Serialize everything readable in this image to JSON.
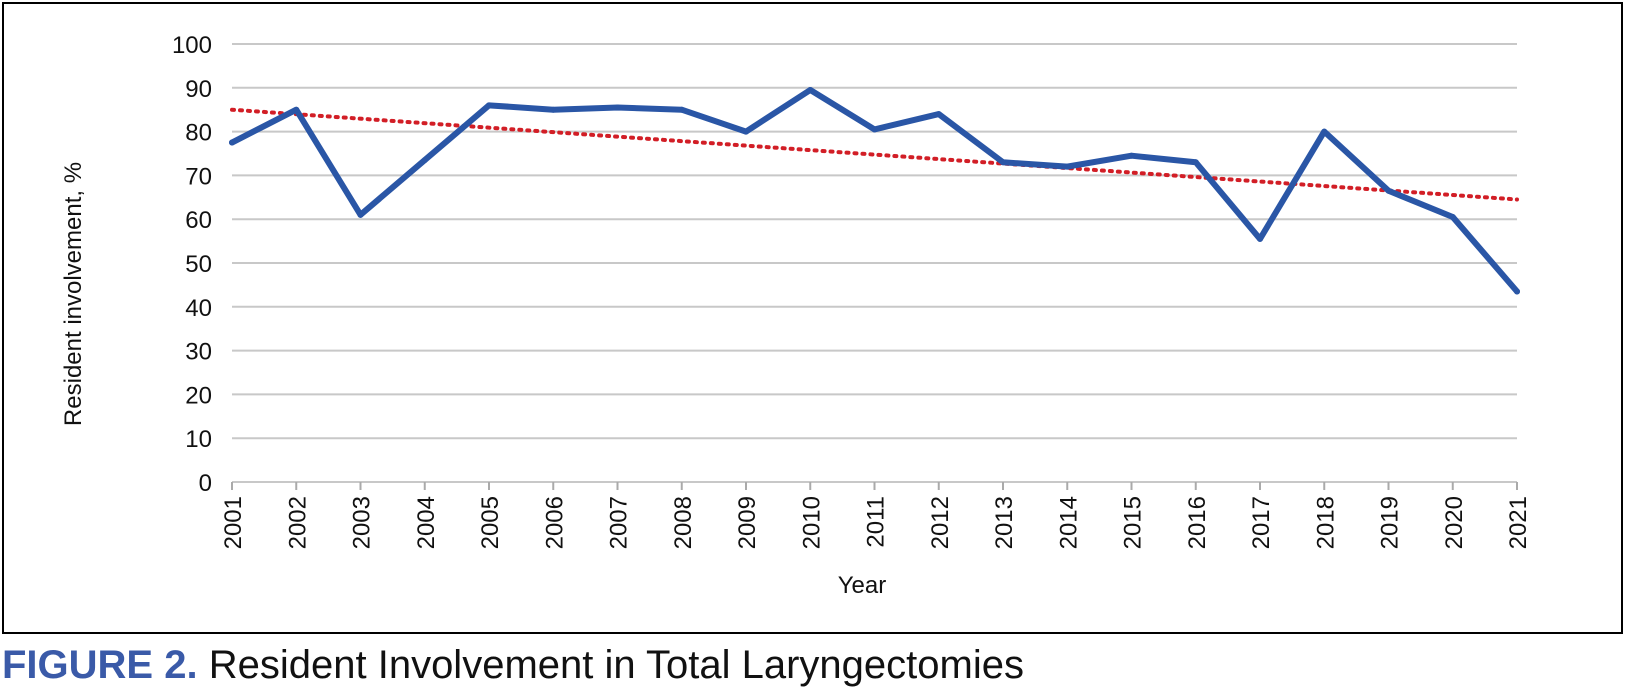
{
  "caption": {
    "label": "FIGURE 2.",
    "text": "Resident Involvement in Total Laryngectomies"
  },
  "colors": {
    "series": "#2a56a6",
    "trend": "#d21e26",
    "grid": "#c8c8c8",
    "caption_label": "#3a5aa8"
  },
  "chart_data": {
    "type": "line",
    "title": "",
    "xlabel": "Year",
    "ylabel": "Resident involvement, %",
    "categories": [
      "2001",
      "2002",
      "2003",
      "2004",
      "2005",
      "2006",
      "2007",
      "2008",
      "2009",
      "2010",
      "2011",
      "2012",
      "2013",
      "2014",
      "2015",
      "2016",
      "2017",
      "2018",
      "2019",
      "2020",
      "2021"
    ],
    "ylim": [
      0,
      100
    ],
    "yticks": [
      0,
      10,
      20,
      30,
      40,
      50,
      60,
      70,
      80,
      90,
      100
    ],
    "grid": true,
    "legend": "none",
    "series": [
      {
        "values": [
          77.5,
          85,
          61,
          73.5,
          86,
          85,
          85.5,
          85,
          80,
          89.5,
          80.5,
          84,
          73,
          72,
          74.5,
          73,
          55.5,
          80,
          66.5,
          60.5,
          43.5
        ]
      }
    ],
    "trendline": {
      "style": "dotted",
      "start": 85,
      "end": 64.5
    }
  }
}
